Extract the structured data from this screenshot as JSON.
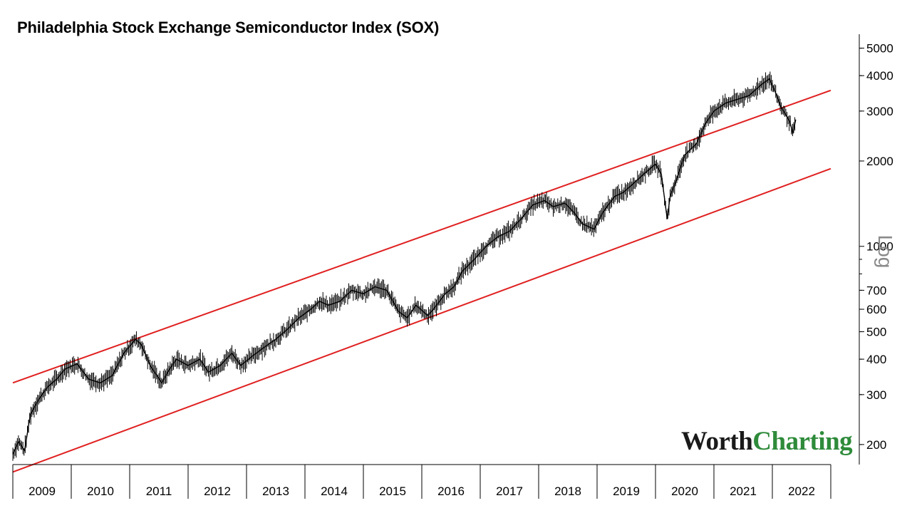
{
  "brand": {
    "part1": "Worth",
    "part2": "Charting"
  },
  "chart_data": {
    "type": "line",
    "title": "Philadelphia Stock Exchange Semiconductor Index (SOX)",
    "scale_label": "Log",
    "yscale": "log",
    "ylim": [
      170,
      5600
    ],
    "xlim": [
      2009.0,
      2023.0
    ],
    "yticks": [
      200,
      300,
      400,
      500,
      600,
      700,
      1000,
      2000,
      3000,
      4000,
      5000
    ],
    "ytick_labels": [
      "200",
      "300",
      "400",
      "500",
      "600",
      "700",
      "1000",
      "2000",
      "3000",
      "4000",
      "5000"
    ],
    "xticks": [
      "2009",
      "2010",
      "2011",
      "2012",
      "2013",
      "2014",
      "2015",
      "2016",
      "2017",
      "2018",
      "2019",
      "2020",
      "2021",
      "2022"
    ],
    "series": [
      {
        "name": "SOX",
        "color": "#000000",
        "x": [
          2009.0,
          2009.1,
          2009.2,
          2009.3,
          2009.45,
          2009.6,
          2009.75,
          2009.9,
          2010.1,
          2010.3,
          2010.5,
          2010.7,
          2010.9,
          2011.1,
          2011.2,
          2011.35,
          2011.55,
          2011.65,
          2011.8,
          2012.0,
          2012.2,
          2012.35,
          2012.55,
          2012.75,
          2012.9,
          2013.1,
          2013.3,
          2013.5,
          2013.7,
          2013.9,
          2014.1,
          2014.25,
          2014.4,
          2014.6,
          2014.8,
          2015.0,
          2015.2,
          2015.4,
          2015.6,
          2015.75,
          2015.9,
          2016.1,
          2016.2,
          2016.4,
          2016.55,
          2016.7,
          2016.9,
          2017.1,
          2017.3,
          2017.5,
          2017.7,
          2017.9,
          2018.1,
          2018.25,
          2018.45,
          2018.6,
          2018.75,
          2018.95,
          2019.1,
          2019.3,
          2019.45,
          2019.6,
          2019.8,
          2020.0,
          2020.1,
          2020.2,
          2020.25,
          2020.35,
          2020.5,
          2020.7,
          2020.85,
          2021.0,
          2021.2,
          2021.4,
          2021.6,
          2021.8,
          2021.95,
          2022.05,
          2022.15,
          2022.3,
          2022.35,
          2022.4
        ],
        "values": [
          185,
          205,
          190,
          255,
          290,
          320,
          340,
          370,
          385,
          340,
          330,
          350,
          420,
          470,
          450,
          380,
          330,
          360,
          400,
          380,
          400,
          360,
          380,
          420,
          380,
          410,
          440,
          470,
          510,
          560,
          600,
          640,
          620,
          640,
          700,
          680,
          720,
          700,
          590,
          560,
          620,
          570,
          600,
          680,
          720,
          820,
          900,
          1000,
          1080,
          1130,
          1250,
          1400,
          1450,
          1380,
          1420,
          1320,
          1200,
          1150,
          1320,
          1500,
          1550,
          1650,
          1800,
          1950,
          1800,
          1250,
          1500,
          1700,
          2100,
          2300,
          2700,
          3000,
          3200,
          3300,
          3400,
          3700,
          3900,
          3500,
          3100,
          2750,
          2500,
          2800
        ]
      }
    ],
    "channel_lines": [
      {
        "name": "upper channel",
        "color": "#e02020",
        "x": [
          2009.0,
          2023.0
        ],
        "values": [
          330,
          3550
        ]
      },
      {
        "name": "lower channel",
        "color": "#e02020",
        "x": [
          2009.0,
          2023.0
        ],
        "values": [
          160,
          1880
        ]
      }
    ]
  }
}
